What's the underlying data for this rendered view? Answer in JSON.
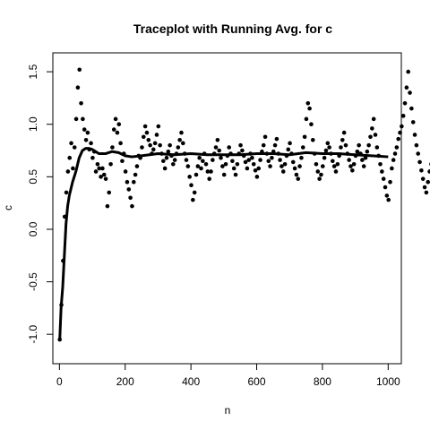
{
  "chart_data": {
    "type": "scatter",
    "title": "Traceplot with Running Avg. for c",
    "xlabel": "n",
    "ylabel": "c",
    "xlim": [
      -20,
      1040
    ],
    "ylim": [
      -1.28,
      1.68
    ],
    "x_ticks": [
      0,
      200,
      400,
      600,
      800,
      1000
    ],
    "x_tick_labels": [
      "0",
      "200",
      "400",
      "600",
      "800",
      "1000"
    ],
    "y_ticks": [
      -1.0,
      -0.5,
      0.0,
      0.5,
      1.0,
      1.5
    ],
    "y_tick_labels": [
      "-1.0",
      "-0.5",
      "0.0",
      "0.5",
      "1.0",
      "1.5"
    ],
    "grid": false,
    "series": [
      {
        "kind": "points",
        "x_start": 1,
        "x_step": 5,
        "values": [
          -1.05,
          -0.72,
          -0.3,
          0.12,
          0.35,
          0.55,
          0.68,
          0.82,
          0.58,
          0.78,
          1.05,
          1.35,
          1.52,
          1.2,
          1.05,
          0.95,
          0.85,
          0.92,
          0.76,
          0.82,
          0.68,
          0.74,
          0.55,
          0.62,
          0.58,
          0.5,
          0.58,
          0.52,
          0.48,
          0.22,
          0.35,
          0.62,
          0.78,
          0.95,
          1.05,
          0.92,
          1.0,
          0.82,
          0.65,
          0.72,
          0.55,
          0.45,
          0.38,
          0.3,
          0.22,
          0.45,
          0.52,
          0.6,
          0.7,
          0.68,
          0.78,
          0.88,
          0.98,
          0.92,
          0.85,
          0.8,
          0.72,
          0.76,
          0.82,
          0.9,
          0.98,
          0.8,
          0.72,
          0.65,
          0.58,
          0.68,
          0.74,
          0.8,
          0.7,
          0.62,
          0.66,
          0.72,
          0.78,
          0.85,
          0.92,
          0.82,
          0.72,
          0.66,
          0.6,
          0.5,
          0.42,
          0.28,
          0.35,
          0.52,
          0.6,
          0.68,
          0.58,
          0.65,
          0.72,
          0.62,
          0.55,
          0.48,
          0.55,
          0.66,
          0.72,
          0.78,
          0.85,
          0.75,
          0.68,
          0.6,
          0.52,
          0.62,
          0.7,
          0.78,
          0.72,
          0.65,
          0.58,
          0.52,
          0.62,
          0.72,
          0.8,
          0.75,
          0.7,
          0.64,
          0.58,
          0.66,
          0.72,
          0.68,
          0.62,
          0.56,
          0.5,
          0.58,
          0.66,
          0.74,
          0.8,
          0.88,
          0.72,
          0.65,
          0.6,
          0.68,
          0.74,
          0.8,
          0.86,
          0.72,
          0.66,
          0.6,
          0.55,
          0.62,
          0.7,
          0.76,
          0.82,
          0.72,
          0.64,
          0.58,
          0.52,
          0.48,
          0.6,
          0.68,
          0.78,
          0.88,
          1.05,
          1.2,
          1.15,
          1.0,
          0.85,
          0.72,
          0.62,
          0.55,
          0.48,
          0.52,
          0.6,
          0.68,
          0.75,
          0.82,
          0.78,
          0.72,
          0.65,
          0.6,
          0.55,
          0.62,
          0.7,
          0.78,
          0.85,
          0.92,
          0.8,
          0.72,
          0.66,
          0.6,
          0.56,
          0.62,
          0.7,
          0.74,
          0.8,
          0.72,
          0.66,
          0.6,
          0.68,
          0.74,
          0.8,
          0.88,
          0.96,
          1.05,
          0.9,
          0.78,
          0.7,
          0.62,
          0.55,
          0.48,
          0.4,
          0.32,
          0.28,
          0.45,
          0.58,
          0.66,
          0.72,
          0.78,
          0.86,
          0.92,
          0.98,
          1.08,
          1.2,
          1.35,
          1.5,
          1.3,
          1.15,
          1.02,
          0.9,
          0.8,
          0.72,
          0.64,
          0.56,
          0.48,
          0.4,
          0.35,
          0.45,
          0.55,
          0.62,
          0.7,
          0.78,
          0.86,
          0.95,
          1.05,
          1.12,
          1.02,
          0.92,
          0.84,
          0.76,
          0.68,
          0.6,
          0.52,
          0.45,
          0.55,
          0.64,
          0.72,
          0.8,
          0.86,
          0.92,
          0.82,
          0.74,
          0.66,
          0.58,
          0.5,
          0.44,
          0.52,
          0.6,
          0.68,
          0.76,
          0.84,
          0.9,
          0.8,
          0.7,
          0.6,
          0.5,
          0.4,
          0.32,
          0.25,
          0.15,
          0.2,
          0.3,
          0.4,
          0.5,
          0.6,
          0.7,
          0.66,
          0.6,
          0.52,
          0.45,
          0.4,
          0.46,
          0.55,
          0.64,
          0.72,
          0.8,
          0.86,
          0.76,
          0.7
        ]
      },
      {
        "kind": "running-average",
        "x": [
          1,
          5,
          10,
          15,
          20,
          25,
          30,
          40,
          50,
          60,
          70,
          80,
          90,
          100,
          110,
          120,
          140,
          160,
          180,
          200,
          220,
          250,
          300,
          350,
          400,
          450,
          500,
          550,
          600,
          650,
          700,
          750,
          800,
          850,
          900,
          950,
          1000
        ],
        "values": [
          -1.05,
          -0.75,
          -0.55,
          -0.25,
          0.05,
          0.22,
          0.32,
          0.45,
          0.55,
          0.68,
          0.75,
          0.77,
          0.77,
          0.76,
          0.74,
          0.72,
          0.72,
          0.74,
          0.73,
          0.7,
          0.69,
          0.7,
          0.72,
          0.71,
          0.72,
          0.71,
          0.71,
          0.71,
          0.72,
          0.72,
          0.71,
          0.73,
          0.72,
          0.72,
          0.71,
          0.7,
          0.69
        ]
      }
    ]
  }
}
